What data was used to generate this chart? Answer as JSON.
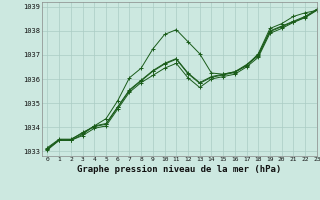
{
  "xlabel": "Graphe pression niveau de la mer (hPa)",
  "xlim": [
    -0.5,
    23
  ],
  "ylim": [
    1032.8,
    1039.2
  ],
  "yticks": [
    1033,
    1034,
    1035,
    1036,
    1037,
    1038,
    1039
  ],
  "xticks": [
    0,
    1,
    2,
    3,
    4,
    5,
    6,
    7,
    8,
    9,
    10,
    11,
    12,
    13,
    14,
    15,
    16,
    17,
    18,
    19,
    20,
    21,
    22,
    23
  ],
  "background_color": "#cce8e0",
  "grid_color": "#aaccc4",
  "line_color": "#1a5c1a",
  "lines": [
    [
      1033.1,
      1033.45,
      1033.45,
      1033.7,
      1034.05,
      1034.35,
      1035.1,
      1036.05,
      1036.45,
      1037.25,
      1037.85,
      1038.05,
      1037.55,
      1037.05,
      1036.25,
      1036.2,
      1036.3,
      1036.55,
      1037.05,
      1038.1,
      1038.3,
      1038.6,
      1038.75,
      1038.85
    ],
    [
      1033.15,
      1033.5,
      1033.5,
      1033.75,
      1034.05,
      1034.15,
      1034.85,
      1035.55,
      1035.95,
      1036.35,
      1036.65,
      1036.85,
      1036.25,
      1035.85,
      1036.1,
      1036.2,
      1036.3,
      1036.6,
      1037.0,
      1038.0,
      1038.2,
      1038.4,
      1038.6,
      1038.9
    ],
    [
      1033.1,
      1033.48,
      1033.48,
      1033.78,
      1034.02,
      1034.12,
      1034.82,
      1035.52,
      1035.92,
      1036.32,
      1036.62,
      1036.82,
      1036.22,
      1035.82,
      1036.07,
      1036.17,
      1036.27,
      1036.57,
      1036.97,
      1037.97,
      1038.17,
      1038.37,
      1038.57,
      1038.87
    ],
    [
      1033.05,
      1033.45,
      1033.45,
      1033.65,
      1033.95,
      1034.05,
      1034.75,
      1035.45,
      1035.85,
      1036.15,
      1036.45,
      1036.65,
      1036.05,
      1035.65,
      1036.0,
      1036.1,
      1036.2,
      1036.5,
      1036.9,
      1037.9,
      1038.1,
      1038.35,
      1038.55,
      1038.85
    ]
  ]
}
